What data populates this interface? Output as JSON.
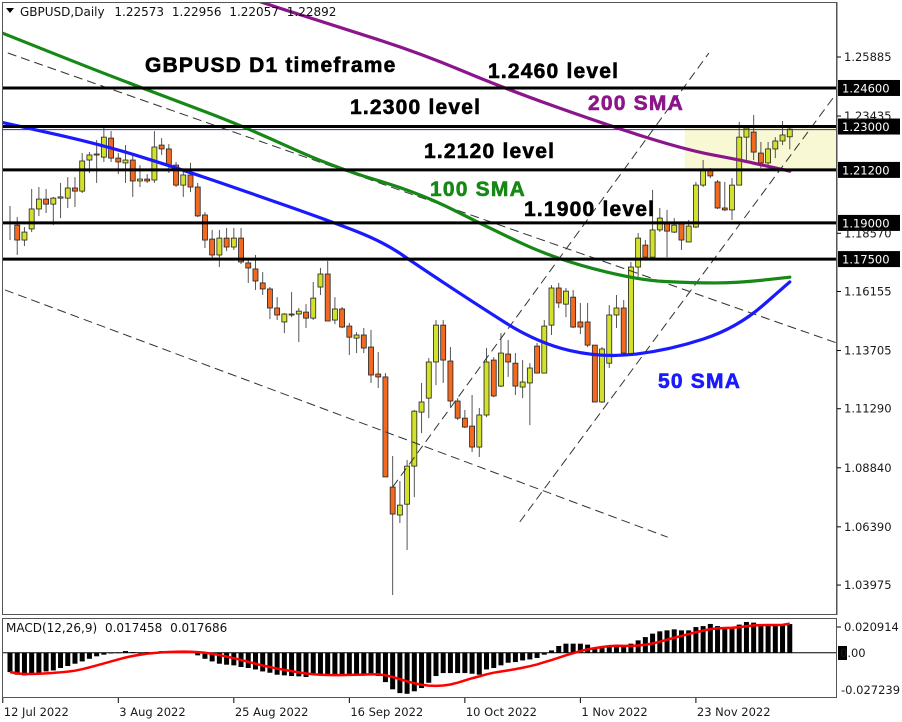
{
  "header": {
    "symbol_timeframe": "GBPUSD,Daily",
    "open": "1.22573",
    "high": "1.22956",
    "low": "1.22057",
    "close": "1.22892"
  },
  "annotations": {
    "title": "GBPUSD D1 timeframe",
    "level_1_2460": "1.2460 level",
    "level_1_2300": "1.2300 level",
    "level_1_2120": "1.2120 level",
    "level_1_1900": "1.1900 level",
    "sma200": "200 SMA",
    "sma100": "100 SMA",
    "sma50": "50 SMA"
  },
  "macd_panel": {
    "label": "MACD(12,26,9)",
    "main_value": "0.017458",
    "signal_value": "0.017686",
    "axis_labels": [
      "0.020914",
      "0.00",
      "-0.027239"
    ]
  },
  "colors": {
    "bull": "#d2e22c",
    "bear": "#f26a22",
    "sma200": "#8b168b",
    "sma100": "#168816",
    "sma50": "#1a1aff",
    "highlight_zone": "#f8f8d4",
    "macd_signal": "#ff0000"
  },
  "chart_data": [
    {
      "type": "candlestick",
      "title": "",
      "ylim": [
        1.03975,
        1.25885
      ],
      "y_ticks": [
        "1.25885",
        "1.23435",
        "1.18570",
        "1.16155",
        "1.13705",
        "1.11290",
        "1.08840",
        "1.06390",
        "1.03975"
      ],
      "x_tick_labels": [
        "12 Jul 2022",
        "3 Aug 2022",
        "25 Aug 2022",
        "16 Sep 2022",
        "10 Oct 2022",
        "1 Nov 2022",
        "23 Nov 2022"
      ],
      "horizontal_levels": [
        {
          "price": 1.246,
          "label": "1.24600"
        },
        {
          "price": 1.23,
          "label": "1.23000"
        },
        {
          "price": 1.212,
          "label": "1.21200"
        },
        {
          "price": 1.19,
          "label": "1.19000"
        },
        {
          "price": 1.175,
          "label": "1.17500"
        }
      ],
      "highlight_zone": {
        "price_from": 1.212,
        "price_to": 1.23,
        "from_bar": 94
      },
      "ohlc": [
        [
          1.19,
          1.197,
          1.1829,
          1.1904
        ],
        [
          1.1891,
          1.1924,
          1.1767,
          1.1829
        ],
        [
          1.1829,
          1.1883,
          1.1804,
          1.1862
        ],
        [
          1.1875,
          1.2041,
          1.1862,
          1.1958
        ],
        [
          1.1958,
          1.2049,
          1.1929,
          1.1999
        ],
        [
          1.1999,
          1.2041,
          1.1941,
          1.1978
        ],
        [
          1.1978,
          1.2008,
          1.1891,
          1.2003
        ],
        [
          1.2003,
          1.2066,
          1.192,
          1.2008
        ],
        [
          1.2003,
          1.209,
          1.1962,
          1.2045
        ],
        [
          1.2045,
          1.209,
          1.1966,
          1.2032
        ],
        [
          1.2032,
          1.219,
          1.2024,
          1.2157
        ],
        [
          1.2161,
          1.2194,
          1.2107,
          1.2182
        ],
        [
          1.2182,
          1.2244,
          1.2066,
          1.2186
        ],
        [
          1.2173,
          1.2298,
          1.2153,
          1.2256
        ],
        [
          1.2252,
          1.2281,
          1.2153,
          1.2169
        ],
        [
          1.2169,
          1.219,
          1.2103,
          1.2153
        ],
        [
          1.2149,
          1.2223,
          1.2066,
          1.2161
        ],
        [
          1.2161,
          1.2182,
          1.2008,
          1.2074
        ],
        [
          1.2074,
          1.214,
          1.2049,
          1.2082
        ],
        [
          1.2082,
          1.2103,
          1.2066,
          1.2074
        ],
        [
          1.2078,
          1.2281,
          1.2066,
          1.2215
        ],
        [
          1.2223,
          1.2252,
          1.2182,
          1.2207
        ],
        [
          1.2207,
          1.2227,
          1.2107,
          1.214
        ],
        [
          1.214,
          1.2153,
          1.2049,
          1.2057
        ],
        [
          1.2057,
          1.2115,
          1.2008,
          1.2099
        ],
        [
          1.2099,
          1.2149,
          1.2028,
          1.2049
        ],
        [
          1.2049,
          1.2066,
          1.1924,
          1.1929
        ],
        [
          1.1933,
          1.1945,
          1.1796,
          1.1829
        ],
        [
          1.1833,
          1.1871,
          1.1747,
          1.1767
        ],
        [
          1.1767,
          1.1871,
          1.1717,
          1.1837
        ],
        [
          1.1837,
          1.1879,
          1.1783,
          1.18
        ],
        [
          1.18,
          1.1879,
          1.1788,
          1.1837
        ],
        [
          1.1837,
          1.1879,
          1.1729,
          1.1738
        ],
        [
          1.1734,
          1.1754,
          1.1651,
          1.1713
        ],
        [
          1.1709,
          1.1767,
          1.1622,
          1.1659
        ],
        [
          1.1651,
          1.1696,
          1.1601,
          1.1626
        ],
        [
          1.1626,
          1.1634,
          1.1501,
          1.1547
        ],
        [
          1.1547,
          1.1592,
          1.1497,
          1.1518
        ],
        [
          1.1489,
          1.1526,
          1.1443,
          1.1522
        ],
        [
          1.1522,
          1.1613,
          1.1509,
          1.1518
        ],
        [
          1.1522,
          1.1547,
          1.1406,
          1.1534
        ],
        [
          1.153,
          1.1563,
          1.1464,
          1.1505
        ],
        [
          1.1505,
          1.1655,
          1.1497,
          1.1588
        ],
        [
          1.1634,
          1.1713,
          1.1601,
          1.1688
        ],
        [
          1.1688,
          1.1742,
          1.1493,
          1.1493
        ],
        [
          1.1497,
          1.1592,
          1.148,
          1.1543
        ],
        [
          1.1543,
          1.1551,
          1.1464,
          1.1468
        ],
        [
          1.1472,
          1.1485,
          1.1352,
          1.1426
        ],
        [
          1.1422,
          1.1447,
          1.136,
          1.1435
        ],
        [
          1.1435,
          1.1464,
          1.136,
          1.1381
        ],
        [
          1.1385,
          1.1456,
          1.1236,
          1.1269
        ],
        [
          1.1273,
          1.1364,
          1.1215,
          1.1261
        ],
        [
          1.1261,
          1.1277,
          1.0846,
          1.0846
        ],
        [
          1.0804,
          1.0933,
          1.0356,
          1.0692
        ],
        [
          1.0688,
          1.0829,
          1.0655,
          1.0729
        ],
        [
          1.0733,
          1.0916,
          1.0543,
          1.0891
        ],
        [
          1.0891,
          1.1124,
          1.0762,
          1.1119
        ],
        [
          1.1115,
          1.1236,
          1.1028,
          1.1157
        ],
        [
          1.1173,
          1.1339,
          1.109,
          1.1323
        ],
        [
          1.1323,
          1.1497,
          1.1227,
          1.1476
        ],
        [
          1.1476,
          1.1497,
          1.1236,
          1.1331
        ],
        [
          1.1327,
          1.1385,
          1.1136,
          1.1161
        ],
        [
          1.1161,
          1.1173,
          1.1082,
          1.109
        ],
        [
          1.109,
          1.1124,
          1.1049,
          1.1053
        ],
        [
          1.1057,
          1.1186,
          1.0949,
          1.097
        ],
        [
          1.097,
          1.1132,
          1.0929,
          1.1103
        ],
        [
          1.1103,
          1.1381,
          1.1094,
          1.1323
        ],
        [
          1.1331,
          1.1343,
          1.1177,
          1.1182
        ],
        [
          1.1223,
          1.1443,
          1.1219,
          1.136
        ],
        [
          1.1356,
          1.1414,
          1.1261,
          1.1323
        ],
        [
          1.1318,
          1.136,
          1.1186,
          1.1223
        ],
        [
          1.1219,
          1.1331,
          1.1173,
          1.124
        ],
        [
          1.1236,
          1.1318,
          1.1061,
          1.1298
        ],
        [
          1.1389,
          1.1402,
          1.1277,
          1.1277
        ],
        [
          1.1277,
          1.1497,
          1.1277,
          1.1472
        ],
        [
          1.1476,
          1.1642,
          1.1435,
          1.163
        ],
        [
          1.163,
          1.1651,
          1.1547,
          1.1568
        ],
        [
          1.1563,
          1.163,
          1.1509,
          1.1617
        ],
        [
          1.1592,
          1.1622,
          1.1464,
          1.1468
        ],
        [
          1.1489,
          1.1568,
          1.1439,
          1.1468
        ],
        [
          1.1489,
          1.1568,
          1.1385,
          1.1393
        ],
        [
          1.1393,
          1.1393,
          1.1157,
          1.1157
        ],
        [
          1.1157,
          1.1385,
          1.1153,
          1.1377
        ],
        [
          1.1318,
          1.1559,
          1.1298,
          1.1518
        ],
        [
          1.1518,
          1.1601,
          1.1464,
          1.1547
        ],
        [
          1.1547,
          1.158,
          1.1356,
          1.136
        ],
        [
          1.1356,
          1.1738,
          1.1352,
          1.1717
        ],
        [
          1.1717,
          1.1858,
          1.1676,
          1.1837
        ],
        [
          1.1808,
          1.1829,
          1.1746,
          1.1758
        ],
        [
          1.1758,
          1.2037,
          1.1758,
          1.1871
        ],
        [
          1.1871,
          1.1962,
          1.1862,
          1.192
        ],
        [
          1.1896,
          1.1954,
          1.1758,
          1.1866
        ],
        [
          1.1862,
          1.192,
          1.1858,
          1.1891
        ],
        [
          1.1896,
          1.1904,
          1.1788,
          1.1829
        ],
        [
          1.1821,
          1.1912,
          1.1821,
          1.1887
        ],
        [
          1.1883,
          1.207,
          1.1879,
          1.2057
        ],
        [
          1.2057,
          1.2161,
          1.2049,
          1.2124
        ],
        [
          1.212,
          1.2128,
          1.2086,
          1.2095
        ],
        [
          1.207,
          1.2078,
          1.1958,
          1.1962
        ],
        [
          1.1962,
          1.207,
          1.1949,
          1.1954
        ],
        [
          1.1954,
          1.2086,
          1.1912,
          1.2057
        ],
        [
          1.2057,
          1.2319,
          1.2057,
          1.2256
        ],
        [
          1.2256,
          1.2306,
          1.2161,
          1.2294
        ],
        [
          1.2277,
          1.2348,
          1.2161,
          1.2194
        ],
        [
          1.219,
          1.2236,
          1.2128,
          1.2149
        ],
        [
          1.2149,
          1.2236,
          1.212,
          1.2207
        ],
        [
          1.2207,
          1.2256,
          1.2169,
          1.224
        ],
        [
          1.224,
          1.2323,
          1.2223,
          1.2265
        ],
        [
          1.22573,
          1.22956,
          1.22057,
          1.22892
        ]
      ],
      "moving_averages": [
        {
          "name": "200 SMA",
          "points": [
            [
              30,
              1.287
            ],
            [
              34.2,
              1.2821
            ],
            [
              44.7,
              1.2721
            ],
            [
              56.8,
              1.2605
            ],
            [
              68.3,
              1.246
            ],
            [
              82.7,
              1.2306
            ],
            [
              93.8,
              1.2202
            ],
            [
              101.1,
              1.2161
            ],
            [
              104.8,
              1.2136
            ],
            [
              108,
              1.2115
            ]
          ]
        },
        {
          "name": "100 SMA",
          "points": [
            [
              -1.4,
              1.2692
            ],
            [
              12.5,
              1.2526
            ],
            [
              21.7,
              1.2422
            ],
            [
              32.3,
              1.2302
            ],
            [
              44.7,
              1.2132
            ],
            [
              56.8,
              1.2024
            ],
            [
              66.1,
              1.1883
            ],
            [
              75.2,
              1.1754
            ],
            [
              86.8,
              1.1663
            ],
            [
              94.6,
              1.1651
            ],
            [
              100.7,
              1.1651
            ],
            [
              108,
              1.1675
            ]
          ]
        },
        {
          "name": "50 SMA",
          "points": [
            [
              -1.4,
              1.2319
            ],
            [
              12.5,
              1.2227
            ],
            [
              23.1,
              1.2128
            ],
            [
              30.9,
              1.2049
            ],
            [
              44.7,
              1.1904
            ],
            [
              51.7,
              1.1821
            ],
            [
              56.8,
              1.1717
            ],
            [
              63.7,
              1.158
            ],
            [
              73.0,
              1.1402
            ],
            [
              82.1,
              1.1339
            ],
            [
              91.4,
              1.1373
            ],
            [
              100.7,
              1.1464
            ],
            [
              108,
              1.1655
            ]
          ]
        }
      ],
      "trendlines": [
        [
          [
            -0.3,
            1.2605
          ],
          [
            114.5,
            1.1402
          ]
        ],
        [
          [
            -0.7,
            1.1622
          ],
          [
            91.1,
            1.0596
          ]
        ],
        [
          [
            53.0,
            1.0804
          ],
          [
            96.8,
            1.2605
          ]
        ],
        [
          [
            70.6,
            1.0659
          ],
          [
            114.3,
            1.2431
          ]
        ]
      ]
    },
    {
      "type": "bar",
      "title": "MACD(12,26,9)",
      "ylim": [
        -0.027239,
        0.020914
      ],
      "macd_histogram": [
        -0.0118,
        -0.0134,
        -0.0138,
        -0.0128,
        -0.0122,
        -0.0114,
        -0.0108,
        -0.0093,
        -0.0081,
        -0.0067,
        -0.0053,
        -0.0037,
        -0.0022,
        -0.0012,
        -0.0004,
        0.0002,
        0.001,
        0.0004,
        0.0001,
        0.0004,
        0.0001,
        0.001,
        0.001,
        0.001,
        0.001,
        0.0004,
        -0.0016,
        -0.0037,
        -0.0053,
        -0.0067,
        -0.0073,
        -0.0077,
        -0.0087,
        -0.0093,
        -0.0102,
        -0.0114,
        -0.0122,
        -0.0134,
        -0.0138,
        -0.0142,
        -0.0144,
        -0.0148,
        -0.0134,
        -0.013,
        -0.013,
        -0.013,
        -0.013,
        -0.013,
        -0.0134,
        -0.0134,
        -0.013,
        -0.0142,
        -0.0179,
        -0.0223,
        -0.0246,
        -0.025,
        -0.0235,
        -0.0215,
        -0.0183,
        -0.0142,
        -0.0124,
        -0.0124,
        -0.0124,
        -0.0124,
        -0.0128,
        -0.0134,
        -0.0102,
        -0.0093,
        -0.0077,
        -0.0061,
        -0.0057,
        -0.0047,
        -0.0041,
        -0.0032,
        -0.0012,
        0.0014,
        0.0041,
        0.0055,
        0.0055,
        0.0055,
        0.0049,
        0.0028,
        0.0028,
        0.0035,
        0.0035,
        0.0035,
        0.0055,
        0.0075,
        0.0095,
        0.0116,
        0.013,
        0.0136,
        0.0142,
        0.0136,
        0.0136,
        0.0156,
        0.0162,
        0.0175,
        0.0162,
        0.015,
        0.015,
        0.0171,
        0.0187,
        0.0183,
        0.0171,
        0.0171,
        0.0171,
        0.0171,
        0.017458
      ],
      "signal_last": 0.017686
    }
  ]
}
